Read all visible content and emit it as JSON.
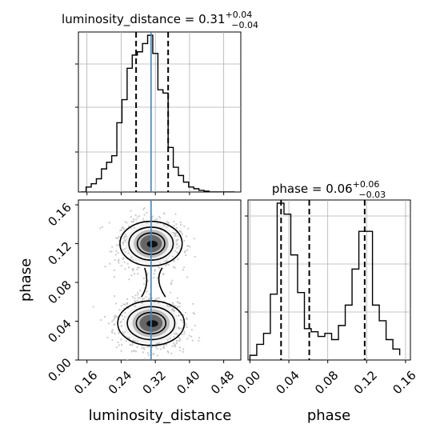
{
  "chart_data": [
    {
      "type": "histogram",
      "panel": "luminosity_distance-marginal",
      "title": {
        "param": "luminosity_distance",
        "median": "0.31",
        "plus": "+0.04",
        "minus": "−0.04"
      },
      "xlim": [
        0.14,
        0.52
      ],
      "bins": [
        0.146,
        0.158,
        0.17,
        0.182,
        0.194,
        0.206,
        0.218,
        0.23,
        0.242,
        0.254,
        0.266,
        0.278,
        0.29,
        0.302,
        0.314,
        0.326,
        0.338,
        0.35,
        0.362,
        0.374,
        0.386,
        0.398,
        0.41,
        0.422,
        0.434,
        0.446,
        0.458,
        0.47,
        0.482,
        0.494,
        0.506
      ],
      "counts": [
        0.0,
        0.03,
        0.05,
        0.08,
        0.14,
        0.18,
        0.22,
        0.42,
        0.56,
        0.75,
        0.83,
        0.85,
        0.9,
        0.95,
        0.84,
        0.62,
        0.6,
        0.27,
        0.15,
        0.1,
        0.06,
        0.03,
        0.02,
        0.01,
        0.005,
        0,
        0,
        0,
        0,
        0
      ],
      "quantile_lines": [
        0.275,
        0.35
      ],
      "truth": 0.31,
      "xticks": [
        "0.16",
        "0.24",
        "0.32",
        "0.40",
        "0.48"
      ]
    },
    {
      "type": "scatter",
      "panel": "luminosity_distance-vs-phase",
      "xlabel": "luminosity_distance",
      "ylabel": "phase",
      "xlim": [
        0.14,
        0.52
      ],
      "ylim": [
        0.0,
        0.165
      ],
      "modes": [
        {
          "x": 0.31,
          "y": 0.12,
          "sx": 0.028,
          "sy": 0.01,
          "weight": 0.45
        },
        {
          "x": 0.31,
          "y": 0.038,
          "sx": 0.03,
          "sy": 0.01,
          "weight": 0.55
        }
      ],
      "truth_x": 0.31,
      "xticks": [
        "0.16",
        "0.24",
        "0.32",
        "0.40",
        "0.48"
      ],
      "yticks": [
        "0.00",
        "0.04",
        "0.08",
        "0.12",
        "0.16"
      ]
    },
    {
      "type": "histogram",
      "panel": "phase-marginal",
      "title": {
        "param": "phase",
        "median": "0.06",
        "plus": "+0.06",
        "minus": "−0.03"
      },
      "xlabel": "phase",
      "xlim": [
        -0.002,
        0.165
      ],
      "bins": [
        0.0,
        0.007,
        0.014,
        0.021,
        0.028,
        0.035,
        0.042,
        0.049,
        0.056,
        0.063,
        0.07,
        0.077,
        0.084,
        0.091,
        0.098,
        0.105,
        0.112,
        0.119,
        0.126,
        0.133,
        0.14,
        0.147,
        0.154
      ],
      "counts": [
        0.03,
        0.1,
        0.17,
        0.42,
        1.0,
        0.93,
        0.67,
        0.43,
        0.2,
        0.18,
        0.15,
        0.17,
        0.13,
        0.22,
        0.35,
        0.58,
        0.82,
        0.82,
        0.35,
        0.25,
        0.13,
        0.07,
        0.03
      ],
      "quantile_lines": [
        0.032,
        0.061,
        0.118
      ],
      "xticks": [
        "0.00",
        "0.04",
        "0.08",
        "0.12",
        "0.16"
      ]
    }
  ]
}
